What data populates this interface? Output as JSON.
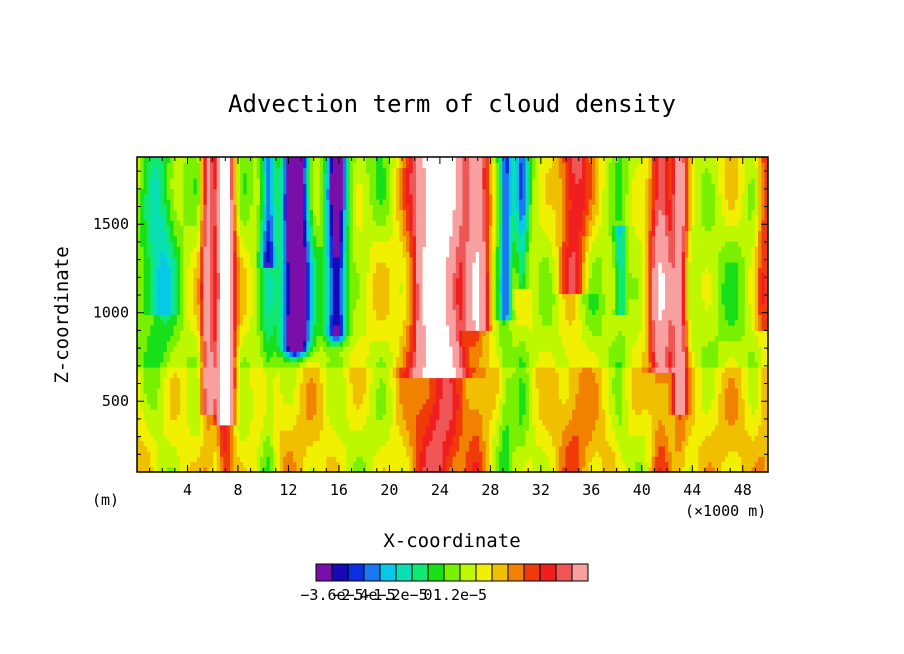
{
  "chart_data": {
    "type": "heatmap",
    "title": "Advection term of cloud density",
    "xlabel": "X-coordinate",
    "ylabel": "Z-coordinate",
    "x_unit_label": "(×1000 m)",
    "y_unit_label": "(m)",
    "xlim": [
      0,
      50
    ],
    "ylim": [
      100,
      1880
    ],
    "x_ticks": [
      "4",
      "8",
      "12",
      "16",
      "20",
      "24",
      "28",
      "32",
      "36",
      "40",
      "44",
      "48"
    ],
    "x_tick_values": [
      4,
      8,
      12,
      16,
      20,
      24,
      28,
      32,
      36,
      40,
      44,
      48
    ],
    "y_ticks": [
      "500",
      "1000",
      "1500"
    ],
    "y_tick_values": [
      500,
      1000,
      1500
    ],
    "colorbar": {
      "colors": [
        "#7a0ea8",
        "#1808b8",
        "#0a2ee0",
        "#1a78f0",
        "#08c8e8",
        "#08e0b4",
        "#10e872",
        "#18e018",
        "#78f000",
        "#bef800",
        "#f0f000",
        "#f0c000",
        "#f08200",
        "#f03a0a",
        "#f01e1e",
        "#f05656",
        "#f8a0a0"
      ],
      "labels": [
        "−3.6e−5",
        "−2.4e−5",
        "−1.2e−5",
        "0",
        "1.2e−5"
      ],
      "label_values": [
        -3.6e-05,
        -2.4e-05,
        -1.2e-05,
        0,
        1.2e-05
      ]
    }
  }
}
